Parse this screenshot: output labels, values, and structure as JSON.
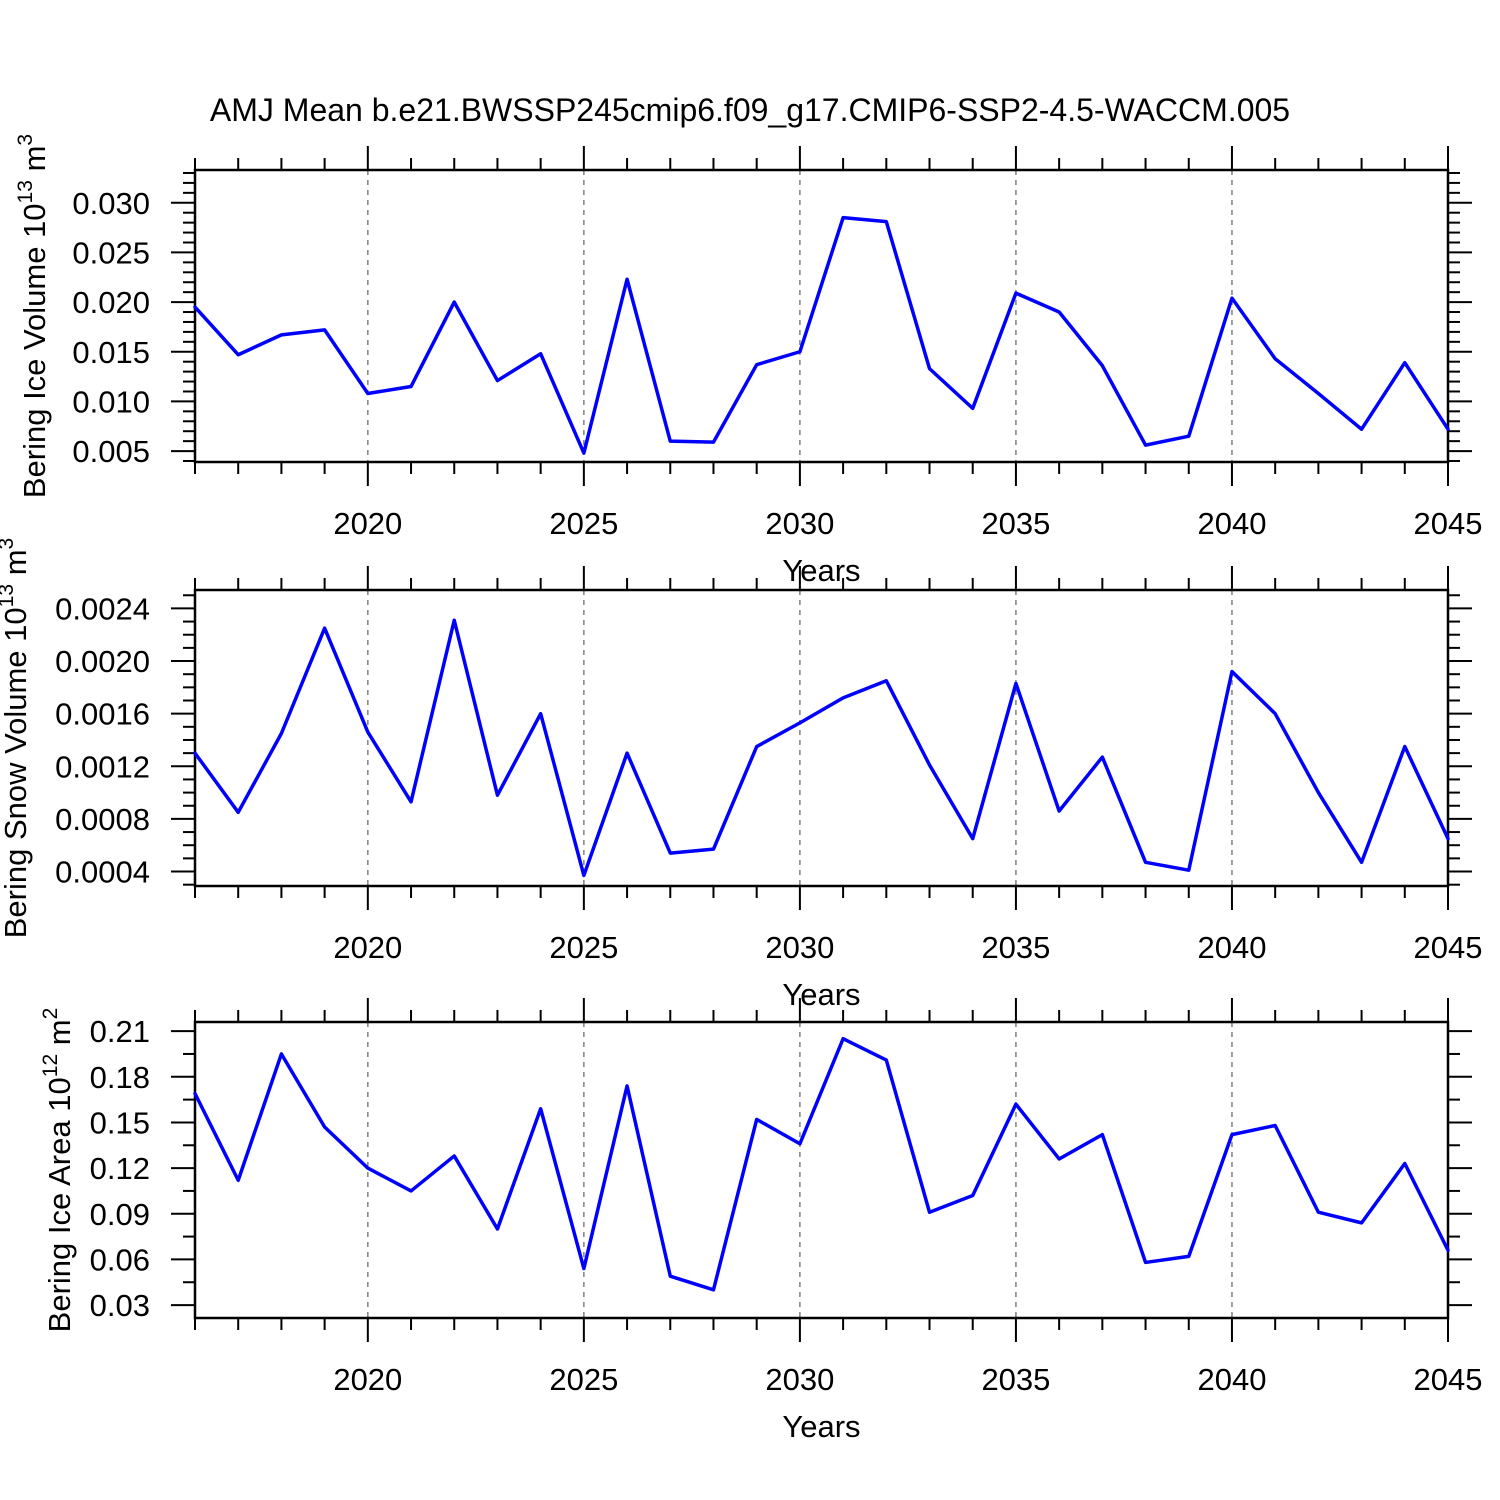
{
  "title": "AMJ Mean b.e21.BWSSP245cmip6.f09_g17.CMIP6-SSP2-4.5-WACCM.005",
  "colors": {
    "line": "#0000FF",
    "grid": "#808080",
    "frame": "#000000"
  },
  "chart_data": [
    {
      "type": "line",
      "id": "bering-ice-volume",
      "ylabel": "Bering Ice Volume 10^13 m^3",
      "xlabel": "Years",
      "xlim": [
        2016,
        2045
      ],
      "ylim": [
        0.0039,
        0.0333
      ],
      "x": [
        2016,
        2017,
        2018,
        2019,
        2020,
        2021,
        2022,
        2023,
        2024,
        2025,
        2026,
        2027,
        2028,
        2029,
        2030,
        2031,
        2032,
        2033,
        2034,
        2035,
        2036,
        2037,
        2038,
        2039,
        2040,
        2041,
        2042,
        2043,
        2044,
        2045
      ],
      "values": [
        0.0195,
        0.0147,
        0.0167,
        0.0172,
        0.0108,
        0.0115,
        0.02,
        0.0121,
        0.0148,
        0.0048,
        0.0223,
        0.006,
        0.0059,
        0.0137,
        0.015,
        0.0285,
        0.0281,
        0.0133,
        0.0093,
        0.0209,
        0.019,
        0.0136,
        0.0056,
        0.0065,
        0.0204,
        0.0143,
        0.0108,
        0.0072,
        0.0139,
        0.0072
      ],
      "xticks": [
        2020,
        2025,
        2030,
        2035,
        2040,
        2045
      ],
      "xtick_labels": [
        "2020",
        "2025",
        "2030",
        "2035",
        "2040",
        "2045"
      ],
      "xtick_minor_step": 1,
      "yticks": [
        0.005,
        0.01,
        0.015,
        0.02,
        0.025,
        0.03
      ],
      "ytick_labels": [
        "0.005",
        "0.010",
        "0.015",
        "0.020",
        "0.025",
        "0.030"
      ],
      "ytick_minor_step": 0.001,
      "grid_x_dashed": [
        2020,
        2025,
        2030,
        2035,
        2040
      ],
      "legend": "none"
    },
    {
      "type": "line",
      "id": "bering-snow-volume",
      "ylabel": "Bering Snow Volume 10^13 m^3",
      "xlabel": "Years",
      "xlim": [
        2016,
        2045
      ],
      "ylim": [
        0.00029,
        0.00254
      ],
      "x": [
        2016,
        2017,
        2018,
        2019,
        2020,
        2021,
        2022,
        2023,
        2024,
        2025,
        2026,
        2027,
        2028,
        2029,
        2030,
        2031,
        2032,
        2033,
        2034,
        2035,
        2036,
        2037,
        2038,
        2039,
        2040,
        2041,
        2042,
        2043,
        2044,
        2045
      ],
      "values": [
        0.0013,
        0.00085,
        0.00145,
        0.00225,
        0.00146,
        0.00093,
        0.00231,
        0.00098,
        0.0016,
        0.00037,
        0.0013,
        0.00054,
        0.00057,
        0.00135,
        0.00153,
        0.00172,
        0.00185,
        0.00121,
        0.00065,
        0.00183,
        0.00086,
        0.00127,
        0.00047,
        0.00041,
        0.00192,
        0.0016,
        0.001,
        0.00047,
        0.00135,
        0.00065
      ],
      "xticks": [
        2020,
        2025,
        2030,
        2035,
        2040,
        2045
      ],
      "xtick_labels": [
        "2020",
        "2025",
        "2030",
        "2035",
        "2040",
        "2045"
      ],
      "xtick_minor_step": 1,
      "yticks": [
        0.0004,
        0.0008,
        0.0012,
        0.0016,
        0.002,
        0.0024
      ],
      "ytick_labels": [
        "0.0004",
        "0.0008",
        "0.0012",
        "0.0016",
        "0.0020",
        "0.0024"
      ],
      "ytick_minor_step": 0.0001,
      "grid_x_dashed": [
        2020,
        2025,
        2030,
        2035,
        2040
      ],
      "legend": "none"
    },
    {
      "type": "line",
      "id": "bering-ice-area",
      "ylabel": "Bering Ice Area 10^12 m^2",
      "xlabel": "Years",
      "xlim": [
        2016,
        2045
      ],
      "ylim": [
        0.0215,
        0.216
      ],
      "x": [
        2016,
        2017,
        2018,
        2019,
        2020,
        2021,
        2022,
        2023,
        2024,
        2025,
        2026,
        2027,
        2028,
        2029,
        2030,
        2031,
        2032,
        2033,
        2034,
        2035,
        2036,
        2037,
        2038,
        2039,
        2040,
        2041,
        2042,
        2043,
        2044,
        2045
      ],
      "values": [
        0.169,
        0.112,
        0.195,
        0.147,
        0.12,
        0.105,
        0.128,
        0.08,
        0.159,
        0.054,
        0.174,
        0.049,
        0.04,
        0.152,
        0.136,
        0.205,
        0.191,
        0.091,
        0.102,
        0.162,
        0.126,
        0.142,
        0.058,
        0.062,
        0.142,
        0.148,
        0.091,
        0.084,
        0.123,
        0.066
      ],
      "xticks": [
        2020,
        2025,
        2030,
        2035,
        2040,
        2045
      ],
      "xtick_labels": [
        "2020",
        "2025",
        "2030",
        "2035",
        "2040",
        "2045"
      ],
      "xtick_minor_step": 1,
      "yticks": [
        0.03,
        0.06,
        0.09,
        0.12,
        0.15,
        0.18,
        0.21
      ],
      "ytick_labels": [
        "0.03",
        "0.06",
        "0.09",
        "0.12",
        "0.15",
        "0.18",
        "0.21"
      ],
      "ytick_minor_step": 0.015,
      "grid_x_dashed": [
        2020,
        2025,
        2030,
        2035,
        2040
      ],
      "legend": "none"
    }
  ]
}
